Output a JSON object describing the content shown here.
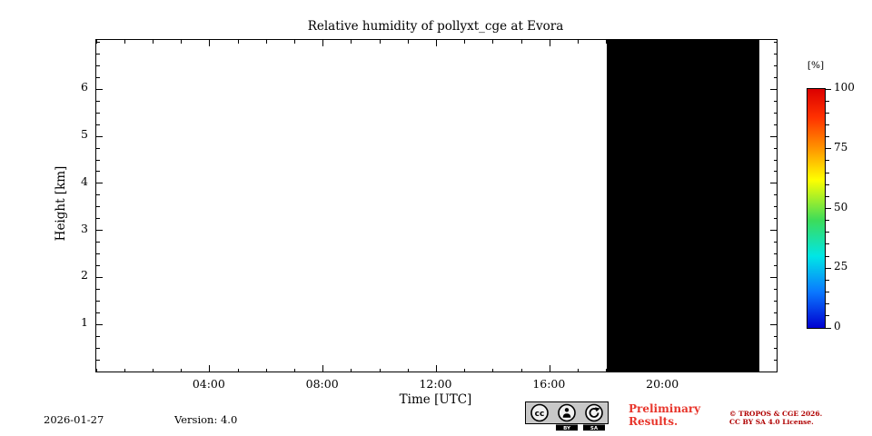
{
  "chart_data": {
    "type": "heatmap",
    "title": "Relative humidity of pollyxt_cge at Evora",
    "xlabel": "Time [UTC]",
    "ylabel": "Height [km]",
    "x_range_hours": [
      0,
      24
    ],
    "y_range_km": [
      0,
      7.05
    ],
    "x_major_ticks": [
      {
        "hour": 4,
        "label": "04:00"
      },
      {
        "hour": 8,
        "label": "08:00"
      },
      {
        "hour": 12,
        "label": "12:00"
      },
      {
        "hour": 16,
        "label": "16:00"
      },
      {
        "hour": 20,
        "label": "20:00"
      }
    ],
    "x_minor_tick_interval_hours": 1,
    "y_major_ticks": [
      {
        "km": 1,
        "label": "1"
      },
      {
        "km": 2,
        "label": "2"
      },
      {
        "km": 3,
        "label": "3"
      },
      {
        "km": 4,
        "label": "4"
      },
      {
        "km": 5,
        "label": "5"
      },
      {
        "km": 6,
        "label": "6"
      }
    ],
    "y_minor_tick_interval_km": 0.25,
    "grid": false,
    "plot_background": "#ffffff",
    "data_regions": [
      {
        "x_start_hour": 18.0,
        "x_end_hour": 23.4,
        "y_start_km": 0,
        "y_end_km": 7.05,
        "fill": "#000000"
      }
    ],
    "colorbar": {
      "label": "[%]",
      "min": 0,
      "max": 100,
      "major_ticks": [
        {
          "value": 0,
          "label": "0"
        },
        {
          "value": 25,
          "label": "25"
        },
        {
          "value": 50,
          "label": "50"
        },
        {
          "value": 75,
          "label": "75"
        },
        {
          "value": 100,
          "label": "100"
        }
      ],
      "minor_tick_interval": 5,
      "gradient_stops": [
        {
          "pos": 0.0,
          "color": "#0000d0"
        },
        {
          "pos": 0.15,
          "color": "#0a78ff"
        },
        {
          "pos": 0.3,
          "color": "#00e6e6"
        },
        {
          "pos": 0.45,
          "color": "#3cdc5a"
        },
        {
          "pos": 0.62,
          "color": "#ffff00"
        },
        {
          "pos": 0.75,
          "color": "#ff9600"
        },
        {
          "pos": 0.88,
          "color": "#ff3200"
        },
        {
          "pos": 1.0,
          "color": "#dc0000"
        }
      ]
    }
  },
  "footer": {
    "date": "2026-01-27",
    "version": "Version: 4.0",
    "preliminary_line1": "Preliminary",
    "preliminary_line2": "Results.",
    "preliminary_color": "#e8352b",
    "copyright_line1": "© TROPOS & CGE 2026.",
    "copyright_line2": "CC BY SA 4.0 License.",
    "copyright_color": "#b00000",
    "license_badge": {
      "name": "CC BY-SA",
      "cc": "cc",
      "sub_labels": [
        "BY",
        "SA"
      ]
    }
  }
}
